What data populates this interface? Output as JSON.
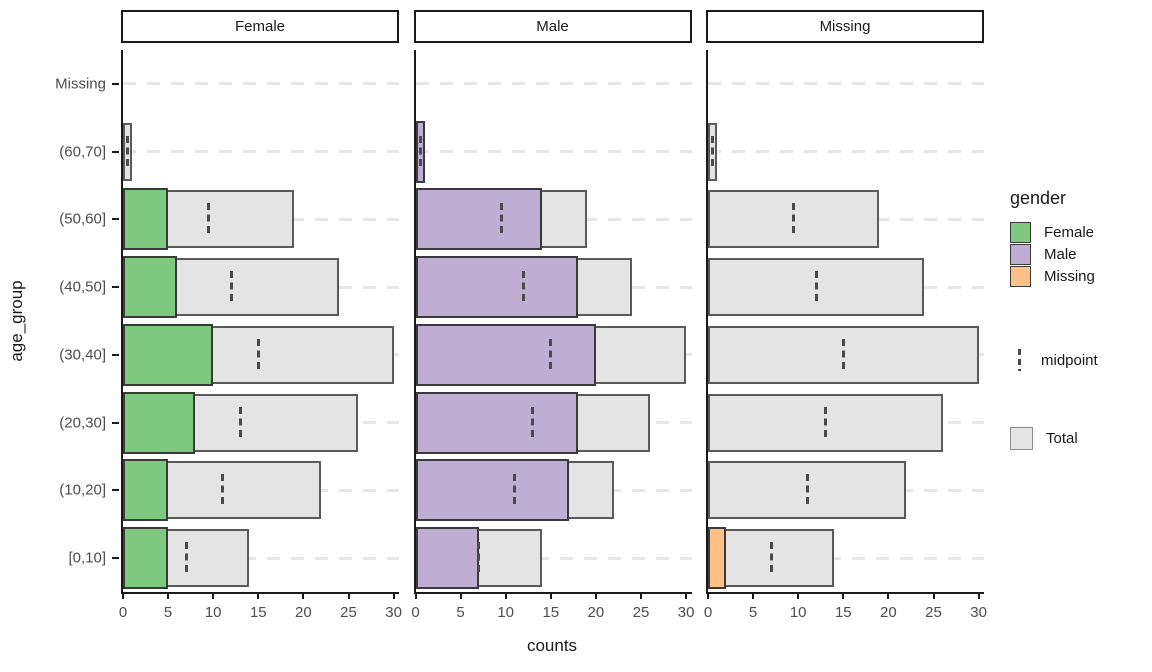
{
  "axis": {
    "x_title": "counts",
    "y_title": "age_group"
  },
  "legend": {
    "title": "gender",
    "items": [
      {
        "label": "Female",
        "color": "#7fc97f"
      },
      {
        "label": "Male",
        "color": "#beaed4"
      },
      {
        "label": "Missing",
        "color": "#fdc086"
      }
    ],
    "midpoint_label": "midpoint",
    "total_label": "Total",
    "total_color": "#e4e4e4"
  },
  "chart_data": {
    "type": "bar",
    "orientation": "horizontal",
    "title": "",
    "xlabel": "counts",
    "ylabel": "age_group",
    "xlim": [
      0,
      30
    ],
    "x_ticks": [
      0,
      5,
      10,
      15,
      20,
      25,
      30
    ],
    "grid": "horizontal-dashed",
    "legend_position": "right",
    "facets": [
      "Female",
      "Male",
      "Missing"
    ],
    "categories_top_to_bottom": [
      "Missing",
      "(60,70]",
      "(50,60]",
      "(40,50]",
      "(30,40]",
      "(20,30]",
      "(10,20]",
      "[0,10]"
    ],
    "totals": [
      0,
      1,
      19,
      24,
      30,
      26,
      22,
      14
    ],
    "midpoints": [
      null,
      0.5,
      9.5,
      12,
      15,
      13,
      11,
      7
    ],
    "series": [
      {
        "name": "Female",
        "color": "#7fc97f",
        "values": [
          0,
          0,
          5,
          6,
          10,
          8,
          5,
          5
        ]
      },
      {
        "name": "Male",
        "color": "#beaed4",
        "values": [
          0,
          1,
          14,
          18,
          20,
          18,
          17,
          7
        ]
      },
      {
        "name": "Missing",
        "color": "#fdc086",
        "values": [
          0,
          0,
          0,
          0,
          0,
          0,
          0,
          2
        ]
      }
    ],
    "total_fill": "#e4e4e4"
  }
}
